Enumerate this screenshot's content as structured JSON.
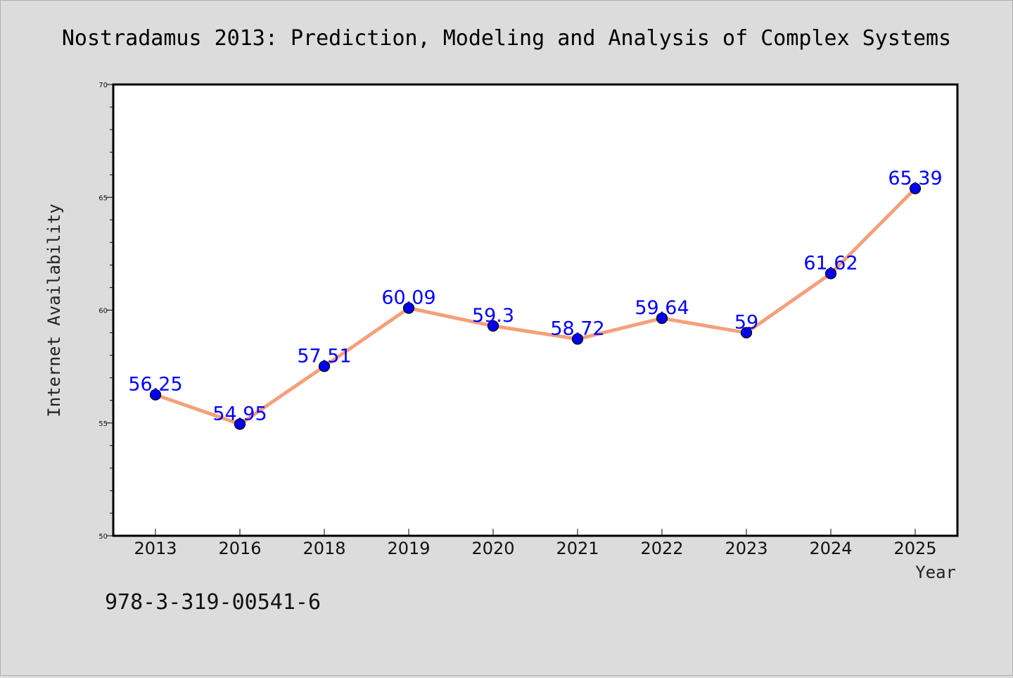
{
  "chart_data": {
    "type": "line",
    "title": "Nostradamus 2013: Prediction, Modeling and Analysis of Complex Systems",
    "xlabel": "Year",
    "ylabel": "Internet Availability",
    "categories": [
      "2013",
      "2016",
      "2018",
      "2019",
      "2020",
      "2021",
      "2022",
      "2023",
      "2024",
      "2025"
    ],
    "series": [
      {
        "values": [
          56.25,
          54.95,
          57.51,
          60.09,
          59.3,
          58.72,
          59.64,
          59,
          61.62,
          65.39
        ],
        "labels": [
          "56.25",
          "54.95",
          "57.51",
          "60.09",
          "59.3",
          "58.72",
          "59.64",
          "59",
          "61.62",
          "65.39"
        ],
        "line_color": "#f4a07a",
        "marker_color": "#0000ee"
      }
    ],
    "ylim": [
      50,
      70
    ],
    "yticks": [
      "50",
      "55",
      "60",
      "65",
      "70"
    ],
    "grid": false,
    "footnote": "978-3-319-00541-6"
  }
}
